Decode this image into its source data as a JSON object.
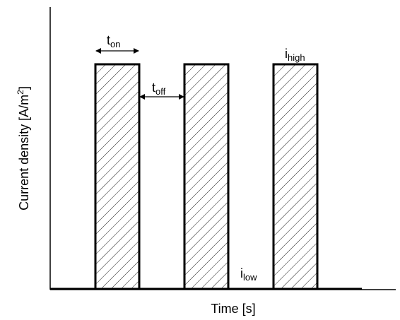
{
  "diagram": {
    "axes": {
      "x_label": "Time [s]",
      "y_label_main": "Current density [A/m",
      "y_label_sup": "2",
      "y_label_end": "]"
    },
    "annotations": {
      "t_on": {
        "base": "t",
        "sub": "on"
      },
      "t_off": {
        "base": "t",
        "sub": "off"
      },
      "i_high": {
        "base": "i",
        "sub": "high"
      },
      "i_low": {
        "base": "i",
        "sub": "low"
      }
    },
    "pulses": {
      "count": 3,
      "pattern": "diagonal-hatch"
    },
    "colors": {
      "line": "#000000",
      "background": "#ffffff"
    }
  }
}
